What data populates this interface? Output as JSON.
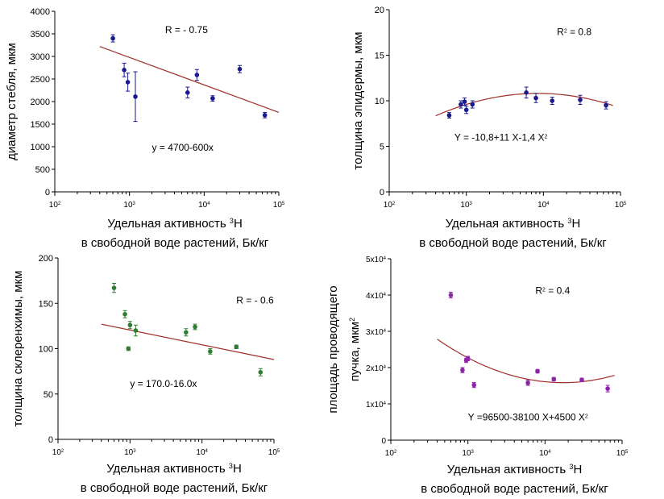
{
  "chart_data": [
    {
      "type": "scatter",
      "xscale": "log",
      "xlim": [
        100,
        100000
      ],
      "ylim": [
        0,
        4000
      ],
      "yticks": [
        0,
        500,
        1000,
        1500,
        2000,
        2500,
        3000,
        3500,
        4000
      ],
      "ytick_labels": [
        "0",
        "500",
        "1000",
        "1500",
        "2000",
        "2500",
        "3000",
        "3500",
        "4000"
      ],
      "xticks": [
        {
          "base": "10",
          "exp": "2"
        },
        {
          "base": "10",
          "exp": "3"
        },
        {
          "base": "10",
          "exp": "4"
        },
        {
          "base": "10",
          "exp": "5"
        }
      ],
      "ylabel": "диаметр стебля, мкм",
      "xlabel": {
        "prefix": "Удельная активность ",
        "sup": "3",
        "suffix": "H",
        "line2": "в свободной воде растений, Бк/кг"
      },
      "marker_color": "#1a1a8c",
      "fit_color": "#a0302a",
      "points": [
        {
          "x": 600,
          "y": 3400,
          "err": 80
        },
        {
          "x": 850,
          "y": 2700,
          "err": 150
        },
        {
          "x": 950,
          "y": 2430,
          "err": 200
        },
        {
          "x": 1200,
          "y": 2110,
          "err": 550
        },
        {
          "x": 6000,
          "y": 2200,
          "err": 120
        },
        {
          "x": 8000,
          "y": 2590,
          "err": 120
        },
        {
          "x": 13000,
          "y": 2070,
          "err": 60
        },
        {
          "x": 30000,
          "y": 2720,
          "err": 80
        },
        {
          "x": 65000,
          "y": 1700,
          "err": 60
        }
      ],
      "fit": {
        "kind": "linear",
        "points": [
          [
            400,
            3220
          ],
          [
            100000,
            1760
          ]
        ]
      },
      "annotations": [
        {
          "parts": [
            {
              "text": "R = - 0.75"
            }
          ],
          "x": 3000,
          "y": 3520
        },
        {
          "parts": [
            {
              "text": "y = 4700-600x"
            }
          ],
          "x": 2000,
          "y": 910
        }
      ]
    },
    {
      "type": "scatter",
      "xscale": "log",
      "xlim": [
        100,
        100000
      ],
      "ylim": [
        0,
        20
      ],
      "yticks": [
        0,
        5,
        10,
        15,
        20
      ],
      "ytick_labels": [
        "0",
        "5",
        "10",
        "15",
        "20"
      ],
      "xticks": [
        {
          "base": "10",
          "exp": "2"
        },
        {
          "base": "10",
          "exp": "3"
        },
        {
          "base": "10",
          "exp": "4"
        },
        {
          "base": "10",
          "exp": "5"
        }
      ],
      "ylabel": "толщина эпидермы, мкм",
      "xlabel": {
        "prefix": "Удельная активность ",
        "sup": "3",
        "suffix": "H",
        "line2": "в свободной воде растений, Бк/кг"
      },
      "marker_color": "#1a1a8c",
      "fit_color": "#a0302a",
      "points": [
        {
          "x": 600,
          "y": 8.4,
          "err": 0.3
        },
        {
          "x": 850,
          "y": 9.6,
          "err": 0.4
        },
        {
          "x": 950,
          "y": 9.9,
          "err": 0.4
        },
        {
          "x": 1000,
          "y": 9.0,
          "err": 0.4
        },
        {
          "x": 1200,
          "y": 9.6,
          "err": 0.4
        },
        {
          "x": 6000,
          "y": 10.9,
          "err": 0.6
        },
        {
          "x": 8000,
          "y": 10.3,
          "err": 0.5
        },
        {
          "x": 13000,
          "y": 10.0,
          "err": 0.4
        },
        {
          "x": 30000,
          "y": 10.1,
          "err": 0.5
        },
        {
          "x": 65000,
          "y": 9.5,
          "err": 0.4
        }
      ],
      "fit": {
        "kind": "quadratic_log10",
        "a": -10.8,
        "b": 11.0,
        "c": -1.4,
        "xrange": [
          400,
          80000
        ]
      },
      "annotations": [
        {
          "parts": [
            {
              "text": "R"
            },
            {
              "text": "2",
              "sup": true
            },
            {
              "text": " = 0.8"
            }
          ],
          "x": 15000,
          "y": 17.2
        },
        {
          "parts": [
            {
              "text": "Y = -10,8+11 X-1,4 X"
            },
            {
              "text": "2",
              "sup": true
            }
          ],
          "x": 700,
          "y": 5.6
        }
      ]
    },
    {
      "type": "scatter",
      "xscale": "log",
      "xlim": [
        100,
        100000
      ],
      "ylim": [
        0,
        200
      ],
      "yticks": [
        0,
        50,
        100,
        150,
        200
      ],
      "ytick_labels": [
        "0",
        "50",
        "100",
        "150",
        "200"
      ],
      "xticks": [
        {
          "base": "10",
          "exp": "2"
        },
        {
          "base": "10",
          "exp": "3"
        },
        {
          "base": "10",
          "exp": "4"
        },
        {
          "base": "10",
          "exp": "5"
        }
      ],
      "ylabel": "толщина склеренхимы, мкм",
      "xlabel": {
        "prefix": "Удельная активность ",
        "sup": "3",
        "suffix": "H",
        "line2": "в свободной воде растений, Бк/кг"
      },
      "marker_color": "#2e7d32",
      "fit_color": "#a0302a",
      "points": [
        {
          "x": 600,
          "y": 167,
          "err": 5
        },
        {
          "x": 850,
          "y": 138,
          "err": 4
        },
        {
          "x": 950,
          "y": 100,
          "err": 2
        },
        {
          "x": 1000,
          "y": 126,
          "err": 4
        },
        {
          "x": 1200,
          "y": 120,
          "err": 6
        },
        {
          "x": 6000,
          "y": 118,
          "err": 4
        },
        {
          "x": 8000,
          "y": 124,
          "err": 3
        },
        {
          "x": 13000,
          "y": 97,
          "err": 3
        },
        {
          "x": 30000,
          "y": 102,
          "err": 2
        },
        {
          "x": 65000,
          "y": 74,
          "err": 4
        }
      ],
      "fit": {
        "kind": "linear",
        "points": [
          [
            400,
            127
          ],
          [
            100000,
            88
          ]
        ]
      },
      "annotations": [
        {
          "parts": [
            {
              "text": "R = - 0.6"
            }
          ],
          "x": 30000,
          "y": 150
        },
        {
          "parts": [
            {
              "text": "y = 170.0-16.0x"
            }
          ],
          "x": 1000,
          "y": 58
        }
      ]
    },
    {
      "type": "scatter",
      "xscale": "log",
      "xlim": [
        100,
        100000
      ],
      "ylim": [
        0,
        50000
      ],
      "yticks": [
        0,
        10000,
        20000,
        30000,
        40000,
        50000
      ],
      "ytick_labels": [
        {
          "mant": "0",
          "exp": ""
        },
        {
          "mant": "1x10",
          "exp": "4"
        },
        {
          "mant": "2x10",
          "exp": "4"
        },
        {
          "mant": "3x10",
          "exp": "4"
        },
        {
          "mant": "4x10",
          "exp": "4"
        },
        {
          "mant": "5x10",
          "exp": "4"
        }
      ],
      "xticks": [
        {
          "base": "10",
          "exp": "2"
        },
        {
          "base": "10",
          "exp": "3"
        },
        {
          "base": "10",
          "exp": "4"
        },
        {
          "base": "10",
          "exp": "5"
        }
      ],
      "ylabel": "площадь проводящего",
      "ylabel2": {
        "text": "пучка, мкм",
        "sup": "2"
      },
      "xlabel": {
        "prefix": "Удельная активность ",
        "sup": "3",
        "suffix": "H",
        "line2": "в свободной воде растений, Бк/кг"
      },
      "marker_color": "#8e24aa",
      "fit_color": "#a0302a",
      "points": [
        {
          "x": 600,
          "y": 40000,
          "err": 800
        },
        {
          "x": 850,
          "y": 19300,
          "err": 700
        },
        {
          "x": 950,
          "y": 22000,
          "err": 600
        },
        {
          "x": 1000,
          "y": 22500,
          "err": 600
        },
        {
          "x": 1200,
          "y": 15200,
          "err": 700
        },
        {
          "x": 6000,
          "y": 15800,
          "err": 700
        },
        {
          "x": 8000,
          "y": 19000,
          "err": 500
        },
        {
          "x": 13000,
          "y": 16800,
          "err": 500
        },
        {
          "x": 30000,
          "y": 16600,
          "err": 500
        },
        {
          "x": 65000,
          "y": 14200,
          "err": 900
        }
      ],
      "fit": {
        "kind": "quadratic_log10",
        "a": 96500,
        "b": -38100,
        "c": 4500,
        "xrange": [
          400,
          80000
        ]
      },
      "annotations": [
        {
          "parts": [
            {
              "text": "R"
            },
            {
              "text": "2",
              "sup": true
            },
            {
              "text": " = 0.4"
            }
          ],
          "x": 7500,
          "y": 40300
        },
        {
          "parts": [
            {
              "text": "Y =96500-38100 X+4500 X"
            },
            {
              "text": "2",
              "sup": true
            }
          ],
          "x": 1000,
          "y": 5400
        }
      ]
    }
  ]
}
